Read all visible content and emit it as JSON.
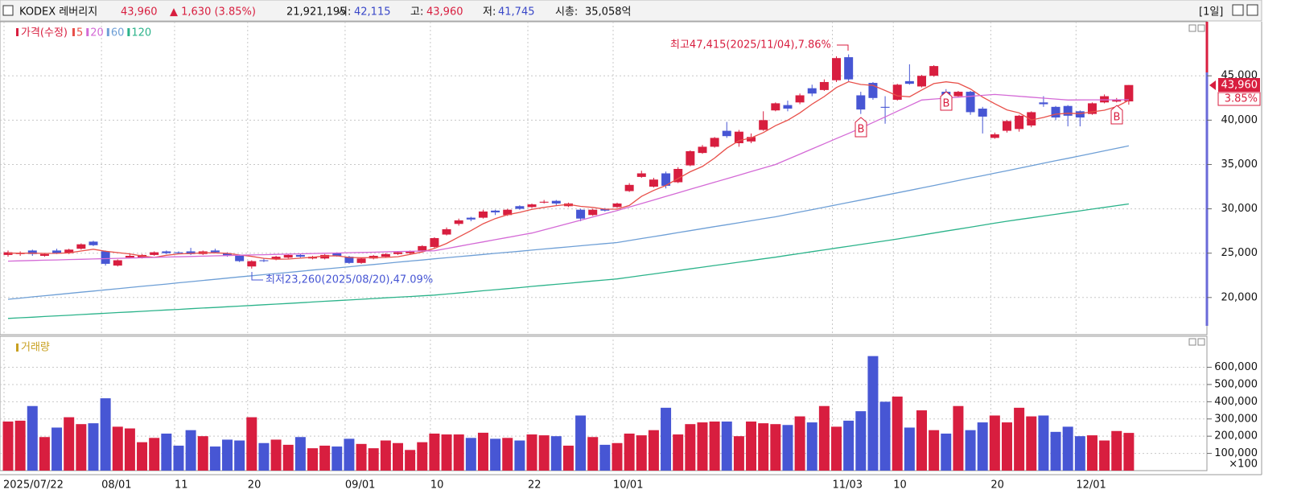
{
  "header": {
    "name": "KODEX 레버리지",
    "price": "43,960",
    "change": "▲ 1,630 (3.85%)",
    "volume": "21,921,195",
    "open": {
      "label": "시:",
      "value": "42,115"
    },
    "high": {
      "label": "고:",
      "value": "43,960"
    },
    "low": {
      "label": "저:",
      "value": "41,745"
    },
    "cap": {
      "label": "시총:",
      "value": "35,058억"
    },
    "period": "[1일]"
  },
  "chart_data": [
    {
      "type": "candlestick",
      "name": "가격(수정)",
      "up_color": "#d81e3f",
      "down_color": "#4756d4",
      "categories": [
        "2025/07/22",
        null,
        null,
        null,
        null,
        null,
        null,
        null,
        "08/01",
        null,
        null,
        null,
        null,
        null,
        "11",
        null,
        null,
        null,
        null,
        null,
        "20",
        null,
        null,
        null,
        null,
        null,
        null,
        null,
        "09/01",
        null,
        null,
        null,
        null,
        null,
        null,
        "10",
        null,
        null,
        null,
        null,
        null,
        null,
        null,
        "22",
        null,
        null,
        null,
        null,
        null,
        null,
        "10/01",
        null,
        null,
        null,
        null,
        null,
        null,
        null,
        null,
        null,
        null,
        null,
        null,
        null,
        null,
        null,
        null,
        null,
        "11/03",
        null,
        null,
        null,
        null,
        "10",
        null,
        null,
        null,
        null,
        null,
        null,
        null,
        "20",
        null,
        null,
        null,
        null,
        null,
        null,
        "12/01",
        null,
        null,
        null,
        null
      ],
      "open": [
        24800,
        24900,
        25300,
        24700,
        25300,
        25000,
        25500,
        26300,
        25200,
        23600,
        24500,
        24500,
        24800,
        25200,
        25100,
        25200,
        24900,
        25300,
        25000,
        24700,
        23500,
        24200,
        24300,
        24500,
        24800,
        24400,
        24400,
        25000,
        24600,
        23900,
        24400,
        24600,
        24900,
        25000,
        25300,
        25700,
        27100,
        28300,
        29000,
        29000,
        29800,
        29300,
        30300,
        30200,
        30700,
        30900,
        30300,
        29900,
        29300,
        30000,
        30200,
        32000,
        33600,
        32500,
        34000,
        33000,
        34900,
        36300,
        37000,
        38800,
        37400,
        37600,
        38900,
        41100,
        41700,
        42000,
        43600,
        43400,
        44500,
        47100,
        42800,
        44200,
        41500,
        42300,
        44400,
        43800,
        45000,
        43200,
        42700,
        43200,
        41300,
        38000,
        38800,
        39000,
        39400,
        42000,
        41500,
        41600,
        41000,
        40700,
        42000,
        42100,
        42115
      ],
      "high": [
        25300,
        25200,
        25400,
        25000,
        25500,
        25500,
        26100,
        26400,
        25300,
        24300,
        24900,
        24900,
        25200,
        25300,
        25200,
        25600,
        25300,
        25500,
        25100,
        24800,
        24200,
        24400,
        24700,
        24900,
        24900,
        24700,
        24900,
        25100,
        24700,
        24500,
        24800,
        25000,
        25200,
        25300,
        25900,
        26800,
        27900,
        28900,
        29100,
        29900,
        29900,
        30000,
        30400,
        30600,
        31000,
        31000,
        30700,
        30000,
        30000,
        30100,
        30700,
        32900,
        34300,
        33500,
        34200,
        34700,
        36600,
        37200,
        38100,
        39800,
        38900,
        38500,
        41000,
        42000,
        42200,
        43000,
        44000,
        44600,
        47200,
        47415,
        43200,
        44300,
        42700,
        44100,
        46300,
        45100,
        46200,
        43500,
        43300,
        43300,
        41500,
        38600,
        40000,
        40600,
        41000,
        42700,
        41600,
        41700,
        41100,
        42000,
        42900,
        42500,
        43960
      ],
      "low": [
        24600,
        24700,
        24700,
        24600,
        24900,
        24900,
        25400,
        25800,
        23600,
        23500,
        24400,
        24400,
        24700,
        24900,
        24900,
        24800,
        24800,
        25000,
        24600,
        24000,
        23260,
        24000,
        24200,
        24400,
        24500,
        24300,
        24300,
        24600,
        23800,
        23800,
        24300,
        24500,
        24800,
        24900,
        25200,
        25600,
        27000,
        28100,
        28600,
        28900,
        29300,
        29200,
        29900,
        30100,
        30600,
        30400,
        30200,
        28600,
        29200,
        29700,
        30100,
        31900,
        33500,
        32400,
        32300,
        32900,
        34800,
        36200,
        36900,
        38000,
        37000,
        37400,
        38800,
        41000,
        41000,
        41800,
        42700,
        43300,
        44300,
        44400,
        40700,
        42300,
        39600,
        42200,
        44000,
        43700,
        44900,
        42100,
        42600,
        40600,
        38500,
        37900,
        38600,
        38700,
        39200,
        41500,
        40000,
        39300,
        39300,
        40600,
        41900,
        42000,
        41745
      ],
      "close": [
        25100,
        25000,
        24900,
        24900,
        25000,
        25400,
        26000,
        25900,
        23800,
        24200,
        24700,
        24800,
        25100,
        25000,
        25000,
        24900,
        25200,
        25100,
        24700,
        24100,
        24100,
        24100,
        24600,
        24800,
        24600,
        24600,
        24800,
        24700,
        23900,
        24400,
        24700,
        24900,
        25100,
        25200,
        25800,
        26700,
        27700,
        28700,
        28800,
        29700,
        29600,
        29900,
        30000,
        30500,
        30800,
        30600,
        30600,
        28900,
        29900,
        29800,
        30600,
        32700,
        34000,
        33300,
        32600,
        34500,
        36500,
        37000,
        38000,
        38200,
        38700,
        38100,
        40000,
        41900,
        41300,
        42800,
        43000,
        44300,
        47000,
        44600,
        41200,
        42500,
        41400,
        44000,
        44100,
        45000,
        46100,
        42400,
        43200,
        40900,
        40400,
        38400,
        39900,
        40500,
        40900,
        41800,
        40300,
        40500,
        40300,
        41900,
        42700,
        42330,
        43960
      ],
      "series": [
        {
          "name": "5",
          "color": "#e8504a",
          "values": [
            25000,
            25000,
            25000,
            24970,
            24980,
            25040,
            25240,
            25440,
            25220,
            25060,
            24920,
            24680,
            24520,
            24760,
            24920,
            24960,
            25040,
            25040,
            24980,
            24800,
            24640,
            24420,
            24320,
            24340,
            24440,
            24540,
            24680,
            24700,
            24520,
            24480,
            24500,
            24520,
            24600,
            24860,
            25140,
            25540,
            26100,
            26820,
            27540,
            28320,
            28900,
            29340,
            29600,
            29940,
            30160,
            30360,
            30500,
            30280,
            30160,
            29960,
            29960,
            30380,
            31400,
            32080,
            32640,
            33420,
            34180,
            34780,
            35720,
            36840,
            37680,
            38000,
            38600,
            39380,
            40000,
            40820,
            41800,
            42660,
            43680,
            44340,
            44020,
            43920,
            43340,
            42740,
            42640,
            43400,
            44120,
            44320,
            44160,
            43520,
            42600,
            41860,
            41160,
            40820,
            40020,
            40300,
            40680,
            40780,
            40740,
            40940,
            41120,
            41530,
            42240
          ]
        },
        {
          "name": "20",
          "color": "#d46ad6",
          "values": [
            24100,
            24140,
            24170,
            24210,
            24240,
            24280,
            24310,
            24350,
            24380,
            24420,
            24450,
            24490,
            24520,
            24560,
            24590,
            24630,
            24660,
            24700,
            24730,
            24770,
            24800,
            24830,
            24860,
            24890,
            24930,
            24960,
            24990,
            25020,
            25050,
            25080,
            25110,
            25150,
            25180,
            25210,
            25240,
            25270,
            25520,
            25770,
            26020,
            26270,
            26520,
            26770,
            27020,
            27270,
            27630,
            27990,
            28360,
            28720,
            29080,
            29440,
            29800,
            30200,
            30600,
            31000,
            31400,
            31800,
            32200,
            32600,
            33000,
            33400,
            33800,
            34200,
            34600,
            35000,
            35590,
            36170,
            36760,
            37340,
            37930,
            38510,
            39100,
            39730,
            40370,
            41000,
            41640,
            42270,
            42380,
            42480,
            42590,
            42690,
            42800,
            42900,
            42800,
            42690,
            42590,
            42480,
            42380,
            42270,
            42280,
            42290,
            42290,
            42300,
            42300
          ]
        },
        {
          "name": "60",
          "color": "#6e9fd6",
          "values": [
            19800,
            19930,
            20070,
            20200,
            20330,
            20460,
            20600,
            20730,
            20860,
            20990,
            21130,
            21260,
            21390,
            21520,
            21660,
            21790,
            21920,
            22050,
            22190,
            22320,
            22450,
            22580,
            22700,
            22830,
            22960,
            23090,
            23210,
            23340,
            23470,
            23600,
            23720,
            23850,
            23980,
            24110,
            24230,
            24360,
            24480,
            24610,
            24730,
            24850,
            24980,
            25100,
            25220,
            25340,
            25470,
            25590,
            25710,
            25830,
            25960,
            26080,
            26200,
            26420,
            26650,
            26870,
            27090,
            27320,
            27540,
            27770,
            27990,
            28210,
            28430,
            28660,
            28880,
            29100,
            29370,
            29640,
            29910,
            30180,
            30450,
            30720,
            30990,
            31260,
            31530,
            31800,
            32080,
            32360,
            32630,
            32910,
            33190,
            33470,
            33740,
            34020,
            34300,
            34580,
            34860,
            35140,
            35420,
            35700,
            35980,
            36260,
            36540,
            36820,
            37100
          ]
        },
        {
          "name": "120",
          "color": "#2bb38a",
          "values": [
            17640,
            17710,
            17780,
            17860,
            17930,
            18000,
            18080,
            18150,
            18220,
            18300,
            18370,
            18440,
            18520,
            18590,
            18660,
            18740,
            18810,
            18880,
            18960,
            19030,
            19100,
            19180,
            19260,
            19330,
            19410,
            19490,
            19570,
            19650,
            19720,
            19800,
            19880,
            19960,
            20040,
            20110,
            20190,
            20270,
            20390,
            20510,
            20640,
            20760,
            20880,
            21000,
            21120,
            21250,
            21370,
            21490,
            21610,
            21730,
            21860,
            21980,
            22100,
            22290,
            22480,
            22660,
            22850,
            23040,
            23230,
            23420,
            23610,
            23790,
            23980,
            24170,
            24360,
            24550,
            24760,
            24960,
            25170,
            25370,
            25580,
            25780,
            25980,
            26190,
            26390,
            26600,
            26820,
            27040,
            27270,
            27490,
            27710,
            27930,
            28160,
            28380,
            28600,
            28800,
            28990,
            29190,
            29380,
            29580,
            29770,
            29970,
            30160,
            30360,
            30550
          ]
        }
      ],
      "ylim": [
        15900,
        51100
      ],
      "yticks": [
        {
          "value": 20000,
          "label": "20,000"
        },
        {
          "value": 25000,
          "label": "25,000"
        },
        {
          "value": 30000,
          "label": "30,000"
        },
        {
          "value": 35000,
          "label": "35,000"
        },
        {
          "value": 40000,
          "label": "40,000"
        },
        {
          "value": 45000,
          "label": "45,000"
        }
      ],
      "grid": true,
      "annotations": [
        "최고47,415(2025/11/04),7.86%",
        "최저23,260(2025/08/20),47.09%"
      ],
      "signals": [
        "B",
        "B",
        "B"
      ],
      "last_change": "3.85%"
    },
    {
      "type": "bar",
      "name": "거래량",
      "color": "#c8a020",
      "values": [
        285000,
        290000,
        375000,
        195000,
        250000,
        310000,
        270000,
        275000,
        420000,
        255000,
        245000,
        165000,
        190000,
        215000,
        145000,
        235000,
        200000,
        140000,
        180000,
        175000,
        310000,
        160000,
        180000,
        150000,
        195000,
        130000,
        145000,
        140000,
        185000,
        155000,
        130000,
        175000,
        160000,
        120000,
        165000,
        215000,
        210000,
        210000,
        190000,
        220000,
        185000,
        190000,
        175000,
        210000,
        205000,
        200000,
        145000,
        320000,
        195000,
        150000,
        160000,
        215000,
        205000,
        235000,
        365000,
        210000,
        270000,
        280000,
        285000,
        285000,
        200000,
        285000,
        275000,
        270000,
        265000,
        315000,
        280000,
        375000,
        255000,
        290000,
        345000,
        665000,
        400000,
        430000,
        250000,
        350000,
        235000,
        215000,
        375000,
        235000,
        280000,
        320000,
        280000,
        365000,
        315000,
        320000,
        225000,
        255000,
        200000,
        205000,
        175000,
        230000,
        219000
      ],
      "ylim": [
        0,
        780000
      ],
      "yticks": [
        {
          "value": 100000,
          "label": "100,000"
        },
        {
          "value": 200000,
          "label": "200,000"
        },
        {
          "value": 300000,
          "label": "300,000"
        },
        {
          "value": 400000,
          "label": "400,000"
        },
        {
          "value": 500000,
          "label": "500,000"
        },
        {
          "value": 600000,
          "label": "600,000"
        }
      ],
      "unit_note": "×100"
    }
  ]
}
